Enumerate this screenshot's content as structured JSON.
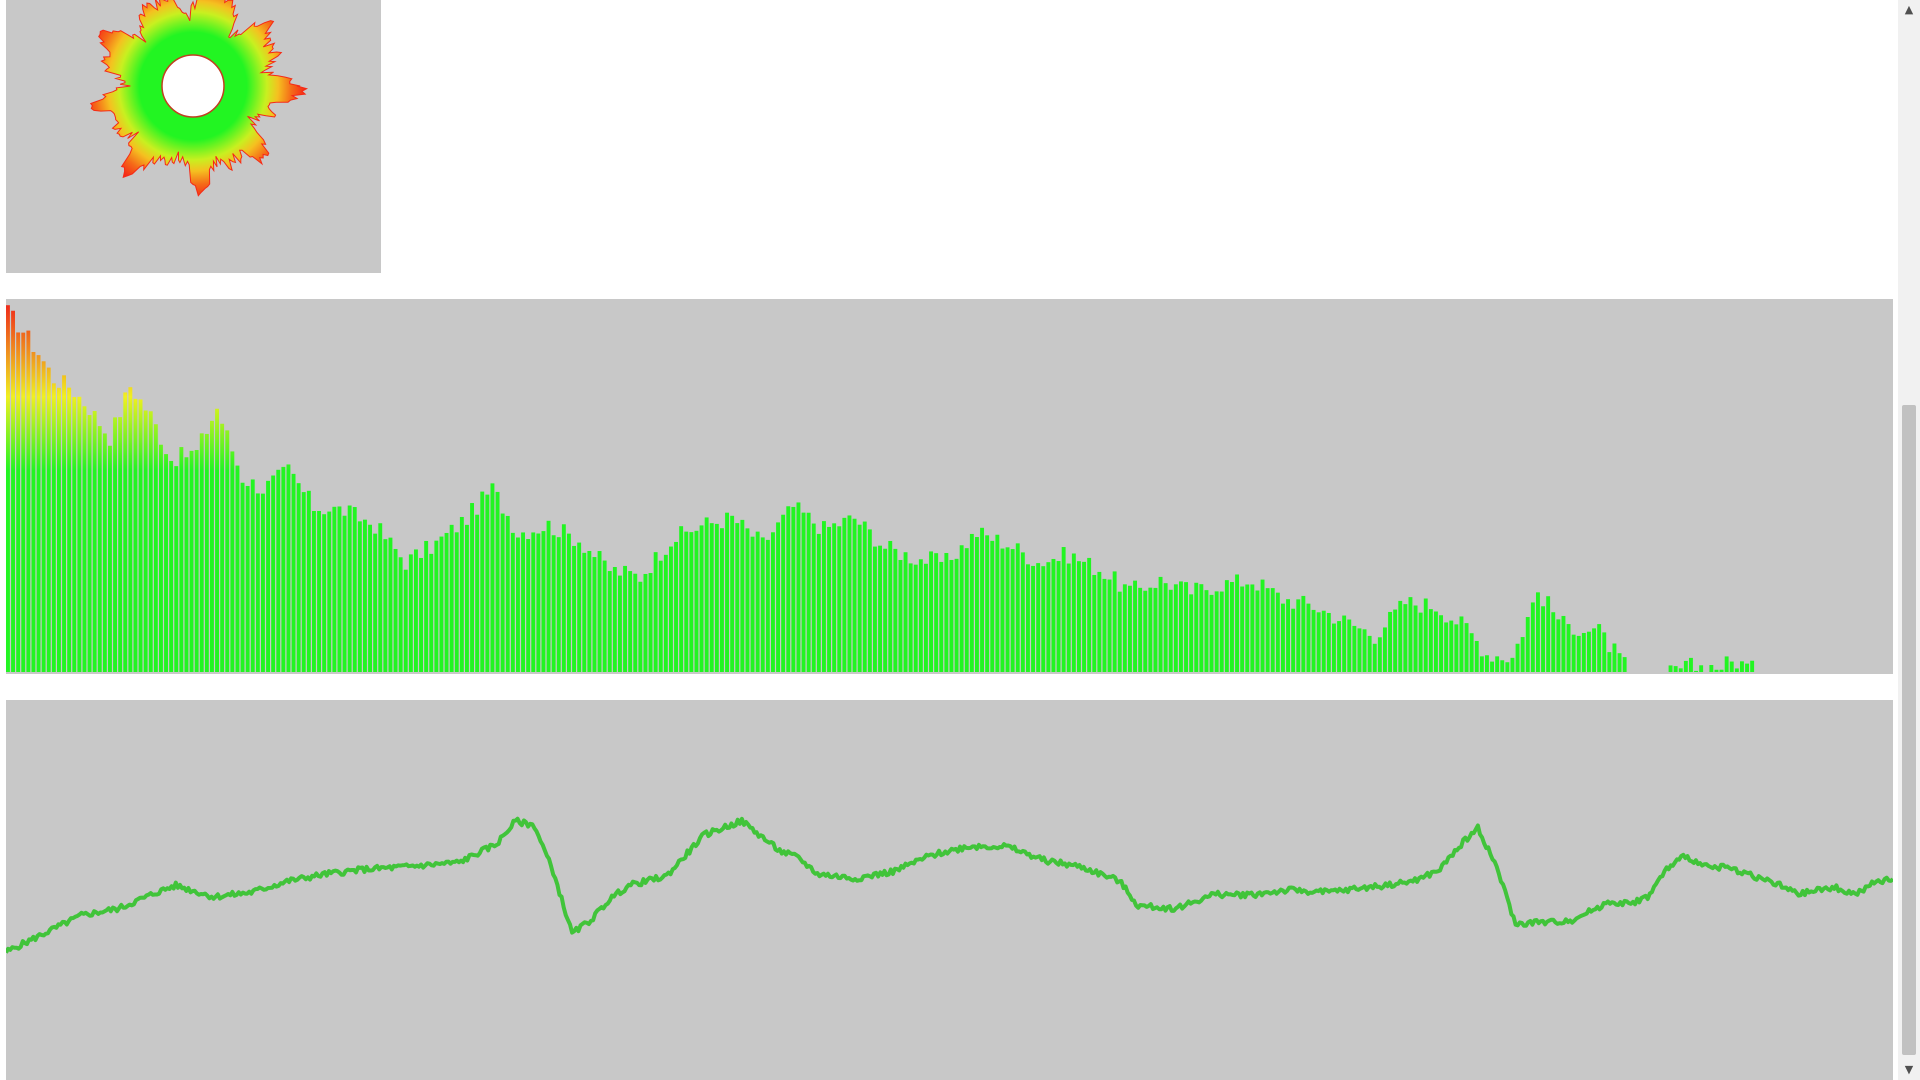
{
  "colors": {
    "panel_bg": "#c8c8c8",
    "bar_low": "#22f522",
    "bar_mid": "#f0f020",
    "bar_high": "#ef2b1b",
    "wave_line": "#41c43a",
    "radial_inner": "#22f522",
    "radial_outer": "#f52a17"
  },
  "visualizers": [
    {
      "kind": "radial-spectrum",
      "center_circle_color": "#ffffff",
      "center_circle_stroke": "#c04020"
    },
    {
      "kind": "frequency-bars",
      "bar_count": 370,
      "filled_count": 310
    },
    {
      "kind": "waveform"
    }
  ],
  "chart_data": [
    {
      "type": "bar",
      "title": "",
      "xlabel": "",
      "ylabel": "",
      "ylim": [
        0,
        1
      ],
      "series": [
        {
          "values_keypoints": [
            [
              0,
              0.98
            ],
            [
              3,
              0.93
            ],
            [
              6,
              0.87
            ],
            [
              9,
              0.8
            ],
            [
              12,
              0.78
            ],
            [
              16,
              0.72
            ],
            [
              20,
              0.64
            ],
            [
              24,
              0.78
            ],
            [
              28,
              0.7
            ],
            [
              32,
              0.58
            ],
            [
              37,
              0.6
            ],
            [
              41,
              0.72
            ],
            [
              46,
              0.53
            ],
            [
              50,
              0.5
            ],
            [
              55,
              0.55
            ],
            [
              60,
              0.45
            ],
            [
              66,
              0.44
            ],
            [
              72,
              0.4
            ],
            [
              78,
              0.3
            ],
            [
              84,
              0.35
            ],
            [
              90,
              0.42
            ],
            [
              95,
              0.5
            ],
            [
              100,
              0.38
            ],
            [
              106,
              0.4
            ],
            [
              112,
              0.36
            ],
            [
              118,
              0.28
            ],
            [
              124,
              0.26
            ],
            [
              130,
              0.36
            ],
            [
              136,
              0.4
            ],
            [
              142,
              0.42
            ],
            [
              148,
              0.35
            ],
            [
              154,
              0.45
            ],
            [
              160,
              0.39
            ],
            [
              166,
              0.42
            ],
            [
              172,
              0.34
            ],
            [
              178,
              0.31
            ],
            [
              184,
              0.3
            ],
            [
              190,
              0.38
            ],
            [
              196,
              0.35
            ],
            [
              202,
              0.3
            ],
            [
              208,
              0.32
            ],
            [
              214,
              0.28
            ],
            [
              220,
              0.22
            ],
            [
              226,
              0.25
            ],
            [
              232,
              0.22
            ],
            [
              238,
              0.24
            ],
            [
              244,
              0.25
            ],
            [
              250,
              0.2
            ],
            [
              256,
              0.18
            ],
            [
              262,
              0.14
            ],
            [
              268,
              0.1
            ],
            [
              274,
              0.19
            ],
            [
              280,
              0.18
            ],
            [
              286,
              0.12
            ],
            [
              290,
              0.05
            ],
            [
              295,
              0.04
            ],
            [
              300,
              0.22
            ],
            [
              305,
              0.13
            ],
            [
              312,
              0.11
            ],
            [
              318,
              0.0
            ],
            [
              325,
              0.0
            ],
            [
              330,
              0.015
            ],
            [
              335,
              0.015
            ],
            [
              339,
              0.03
            ],
            [
              343,
              0.0
            ],
            [
              369,
              0.0
            ]
          ]
        }
      ]
    },
    {
      "type": "line",
      "title": "",
      "xlabel": "",
      "ylabel": "",
      "ylim": [
        -1,
        1
      ],
      "series": [
        {
          "values_keypoints": [
            [
              0,
              -0.27
            ],
            [
              0.02,
              -0.19
            ],
            [
              0.04,
              -0.11
            ],
            [
              0.06,
              -0.08
            ],
            [
              0.08,
              -0.01
            ],
            [
              0.09,
              0.02
            ],
            [
              0.11,
              -0.03
            ],
            [
              0.13,
              -0.01
            ],
            [
              0.15,
              0.04
            ],
            [
              0.17,
              0.07
            ],
            [
              0.19,
              0.09
            ],
            [
              0.21,
              0.1
            ],
            [
              0.24,
              0.12
            ],
            [
              0.26,
              0.2
            ],
            [
              0.27,
              0.3
            ],
            [
              0.28,
              0.28
            ],
            [
              0.29,
              0.08
            ],
            [
              0.3,
              -0.19
            ],
            [
              0.31,
              -0.13
            ],
            [
              0.32,
              -0.04
            ],
            [
              0.33,
              0.02
            ],
            [
              0.35,
              0.06
            ],
            [
              0.37,
              0.24
            ],
            [
              0.39,
              0.3
            ],
            [
              0.41,
              0.17
            ],
            [
              0.42,
              0.14
            ],
            [
              0.43,
              0.07
            ],
            [
              0.45,
              0.05
            ],
            [
              0.47,
              0.08
            ],
            [
              0.49,
              0.15
            ],
            [
              0.51,
              0.19
            ],
            [
              0.53,
              0.19
            ],
            [
              0.55,
              0.13
            ],
            [
              0.57,
              0.1
            ],
            [
              0.59,
              0.04
            ],
            [
              0.6,
              -0.07
            ],
            [
              0.62,
              -0.08
            ],
            [
              0.64,
              -0.02
            ],
            [
              0.66,
              -0.02
            ],
            [
              0.68,
              0.0
            ],
            [
              0.7,
              -0.01
            ],
            [
              0.72,
              0.01
            ],
            [
              0.74,
              0.03
            ],
            [
              0.75,
              0.05
            ],
            [
              0.76,
              0.09
            ],
            [
              0.77,
              0.19
            ],
            [
              0.78,
              0.27
            ],
            [
              0.79,
              0.1
            ],
            [
              0.8,
              -0.15
            ],
            [
              0.81,
              -0.14
            ],
            [
              0.82,
              -0.14
            ],
            [
              0.83,
              -0.13
            ],
            [
              0.84,
              -0.09
            ],
            [
              0.85,
              -0.05
            ],
            [
              0.86,
              -0.06
            ],
            [
              0.87,
              -0.03
            ],
            [
              0.88,
              0.09
            ],
            [
              0.89,
              0.15
            ],
            [
              0.9,
              0.1
            ],
            [
              0.91,
              0.1
            ],
            [
              0.92,
              0.08
            ],
            [
              0.93,
              0.05
            ],
            [
              0.94,
              0.02
            ],
            [
              0.95,
              -0.02
            ],
            [
              0.96,
              0.0
            ],
            [
              0.97,
              0.01
            ],
            [
              0.98,
              -0.02
            ],
            [
              0.99,
              0.03
            ],
            [
              1.0,
              0.05
            ]
          ]
        }
      ]
    }
  ]
}
